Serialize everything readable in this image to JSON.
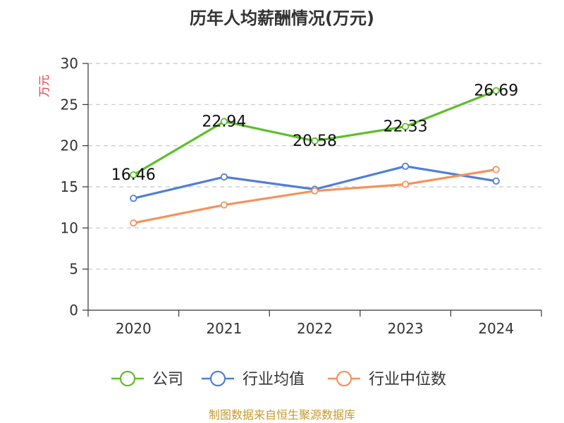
{
  "chart_data": {
    "type": "line",
    "title": "历年人均薪酬情况(万元)",
    "ylabel": "万元",
    "xlabel": "",
    "categories": [
      "2020",
      "2021",
      "2022",
      "2023",
      "2024"
    ],
    "ylim": [
      0,
      30
    ],
    "yticks": [
      0,
      5,
      10,
      15,
      20,
      25,
      30
    ],
    "grid": true,
    "legend_position": "bottom",
    "series": [
      {
        "name": "公司",
        "color": "#5cbf2a",
        "values": [
          16.46,
          22.94,
          20.58,
          22.33,
          26.69
        ],
        "labels": [
          "16.46",
          "22.94",
          "20.58",
          "22.33",
          "26.69"
        ]
      },
      {
        "name": "行业均值",
        "color": "#4f7fd8",
        "values": [
          13.6,
          16.2,
          14.7,
          17.5,
          15.7
        ]
      },
      {
        "name": "行业中位数",
        "color": "#f5925a",
        "values": [
          10.6,
          12.8,
          14.5,
          15.3,
          17.1
        ]
      }
    ]
  },
  "source": "制图数据来自恒生聚源数据库"
}
